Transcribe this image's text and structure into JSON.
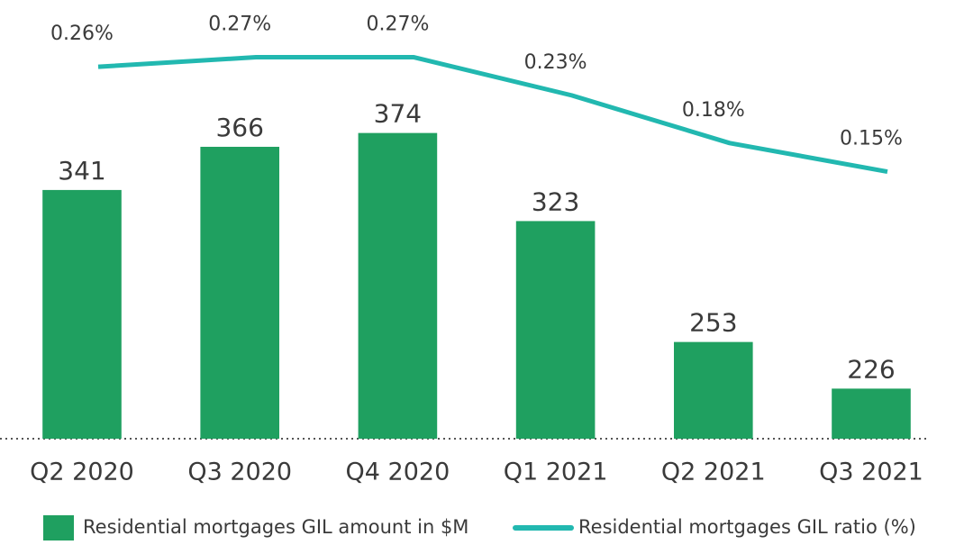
{
  "chart_data": {
    "type": "bar",
    "categories": [
      "Q2 2020",
      "Q3 2020",
      "Q4 2020",
      "Q1 2021",
      "Q2 2021",
      "Q3 2021"
    ],
    "series": [
      {
        "name": "Residential mortgages GIL amount in $M",
        "type": "bar",
        "color": "#1fa060",
        "values": [
          341,
          366,
          374,
          323,
          253,
          226
        ]
      },
      {
        "name": "Residential mortgages GIL ratio (%)",
        "type": "line",
        "color": "#22b8b0",
        "axis": "y2",
        "values": [
          0.26,
          0.27,
          0.27,
          0.23,
          0.18,
          0.15
        ],
        "value_labels": [
          "0.26%",
          "0.27%",
          "0.27%",
          "0.23%",
          "0.18%",
          "0.15%"
        ]
      }
    ],
    "ylim": [
      197,
      451
    ],
    "y2lim": [
      -0.13,
      0.33
    ],
    "legend": "bottom"
  }
}
